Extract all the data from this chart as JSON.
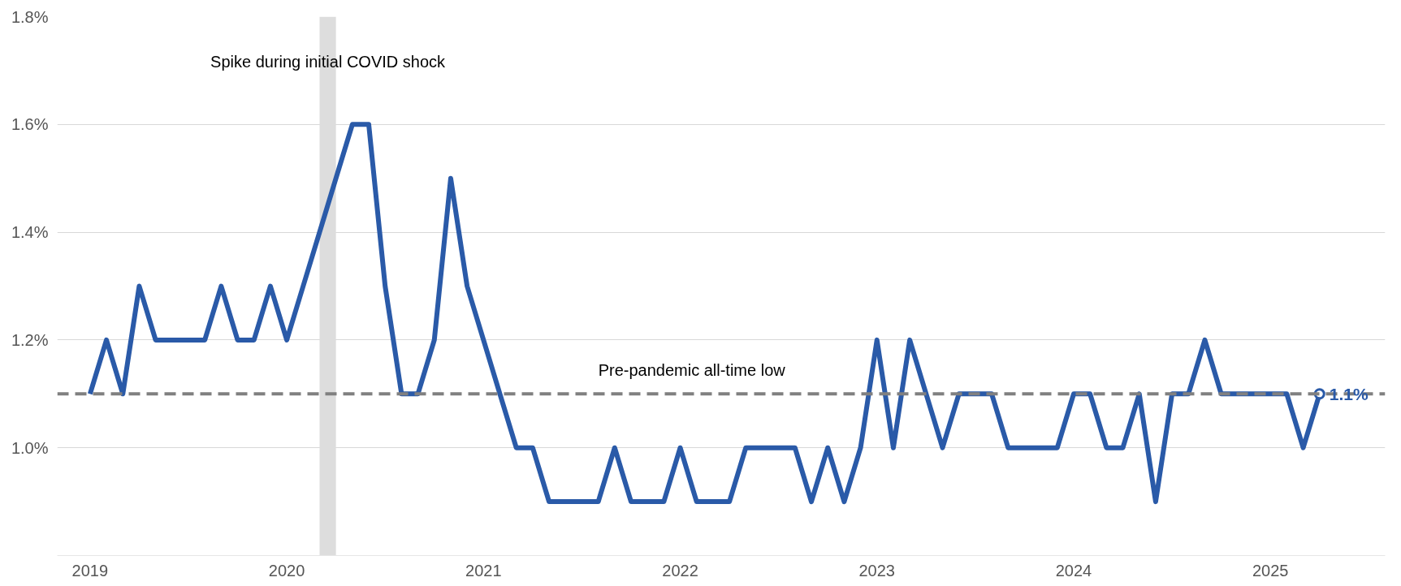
{
  "chart_data": {
    "type": "line",
    "x": [
      "2019-01",
      "2019-02",
      "2019-03",
      "2019-04",
      "2019-05",
      "2019-06",
      "2019-07",
      "2019-08",
      "2019-09",
      "2019-10",
      "2019-11",
      "2019-12",
      "2020-01",
      "2020-02",
      "2020-03",
      "2020-04",
      "2020-05",
      "2020-06",
      "2020-07",
      "2020-08",
      "2020-09",
      "2020-10",
      "2020-11",
      "2020-12",
      "2021-01",
      "2021-02",
      "2021-03",
      "2021-04",
      "2021-05",
      "2021-06",
      "2021-07",
      "2021-08",
      "2021-09",
      "2021-10",
      "2021-11",
      "2021-12",
      "2022-01",
      "2022-02",
      "2022-03",
      "2022-04",
      "2022-05",
      "2022-06",
      "2022-07",
      "2022-08",
      "2022-09",
      "2022-10",
      "2022-11",
      "2022-12",
      "2023-01",
      "2023-02",
      "2023-03",
      "2023-04",
      "2023-05",
      "2023-06",
      "2023-07",
      "2023-08",
      "2023-09",
      "2023-10",
      "2023-11",
      "2023-12",
      "2024-01",
      "2024-02",
      "2024-03",
      "2024-04",
      "2024-05",
      "2024-06",
      "2024-07",
      "2024-08",
      "2024-09",
      "2024-10",
      "2024-11",
      "2024-12",
      "2025-01",
      "2025-02",
      "2025-03",
      "2025-04"
    ],
    "series": [
      {
        "color": "#2a5aa8",
        "values": [
          1.1,
          1.2,
          1.1,
          1.3,
          1.2,
          1.2,
          1.2,
          1.2,
          1.3,
          1.2,
          1.2,
          1.3,
          1.2,
          1.3,
          1.4,
          1.5,
          1.6,
          1.6,
          1.3,
          1.1,
          1.1,
          1.2,
          1.5,
          1.3,
          1.2,
          1.1,
          1.0,
          1.0,
          0.9,
          0.9,
          0.9,
          0.9,
          1.0,
          0.9,
          0.9,
          0.9,
          1.0,
          0.9,
          0.9,
          0.9,
          1.0,
          1.0,
          1.0,
          1.0,
          0.9,
          1.0,
          0.9,
          1.0,
          1.2,
          1.0,
          1.2,
          1.1,
          1.0,
          1.1,
          1.1,
          1.1,
          1.0,
          1.0,
          1.0,
          1.0,
          1.1,
          1.1,
          1.0,
          1.0,
          1.1,
          0.9,
          1.1,
          1.1,
          1.2,
          1.1,
          1.1,
          1.1,
          1.1,
          1.1,
          1.0,
          1.1
        ]
      }
    ],
    "xlim": [
      "2018-11",
      "2025-08"
    ],
    "xticks": [
      {
        "value": "2019-01",
        "label": "2019"
      },
      {
        "value": "2020-01",
        "label": "2020"
      },
      {
        "value": "2021-01",
        "label": "2021"
      },
      {
        "value": "2022-01",
        "label": "2022"
      },
      {
        "value": "2023-01",
        "label": "2023"
      },
      {
        "value": "2024-01",
        "label": "2024"
      },
      {
        "value": "2025-01",
        "label": "2025"
      }
    ],
    "ylim": [
      0.8,
      1.8
    ],
    "yticks": [
      {
        "value": 1.0,
        "label": "1.0%"
      },
      {
        "value": 1.2,
        "label": "1.2%"
      },
      {
        "value": 1.4,
        "label": "1.4%"
      },
      {
        "value": 1.6,
        "label": "1.6%"
      },
      {
        "value": 1.8,
        "label": "1.8%"
      }
    ],
    "grid": "y",
    "marker": "none",
    "line_style": "solid",
    "ref_lines": [
      {
        "axis": "y",
        "value": 1.1,
        "label": "Pre-pandemic all-time low",
        "color": "#808080",
        "line_style": "dashed"
      }
    ],
    "bands": [
      {
        "axis": "x",
        "from": "2020-03",
        "to": "2020-04",
        "label": "Spike during initial COVID shock",
        "color": "#dddddd"
      }
    ],
    "annotations": [
      {
        "text": "1.1%",
        "x": "2025-04",
        "y": 1.1
      }
    ]
  }
}
